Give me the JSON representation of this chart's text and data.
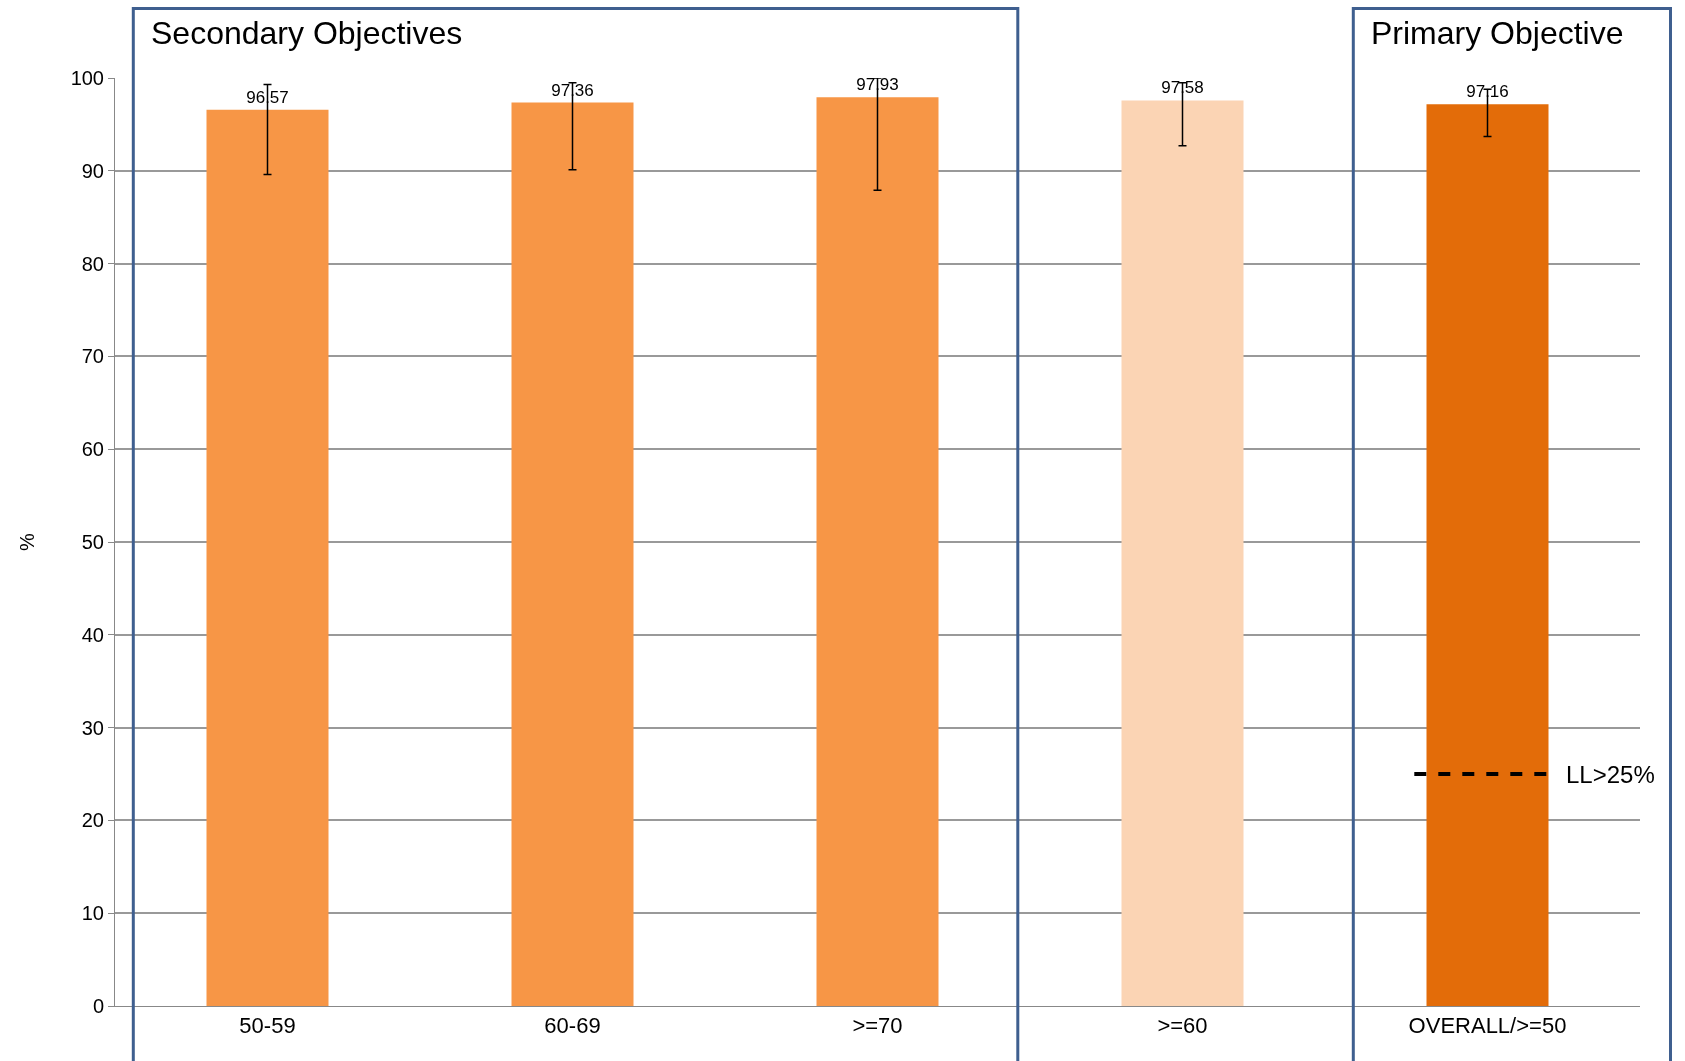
{
  "chart_data": {
    "type": "bar",
    "ylabel": "%",
    "categories": [
      "50-59",
      "60-69",
      ">=70",
      ">=60",
      "OVERALL/>=50"
    ],
    "values": [
      96.57,
      97.36,
      97.93,
      97.58,
      97.16
    ],
    "colors": [
      "#f79646",
      "#f79646",
      "#f79646",
      "#fbd4b4",
      "#e36c09"
    ],
    "errors": [
      [
        89.6,
        99.3
      ],
      [
        90.1,
        99.5
      ],
      [
        87.9,
        100
      ],
      [
        92.7,
        99.5
      ],
      [
        93.7,
        98.8
      ]
    ],
    "data_labels": true,
    "ylim": [
      0,
      100
    ],
    "yticks": [
      0,
      10,
      20,
      30,
      40,
      50,
      60,
      70,
      80,
      90,
      100
    ],
    "grid": "y",
    "ref_lines": [
      {
        "axis": "y",
        "value": 25,
        "label": "LL>25%",
        "color": "#000000",
        "line_style": "dashed"
      }
    ],
    "annotations": [
      "Secondary Objectives",
      "Primary Objective"
    ]
  }
}
